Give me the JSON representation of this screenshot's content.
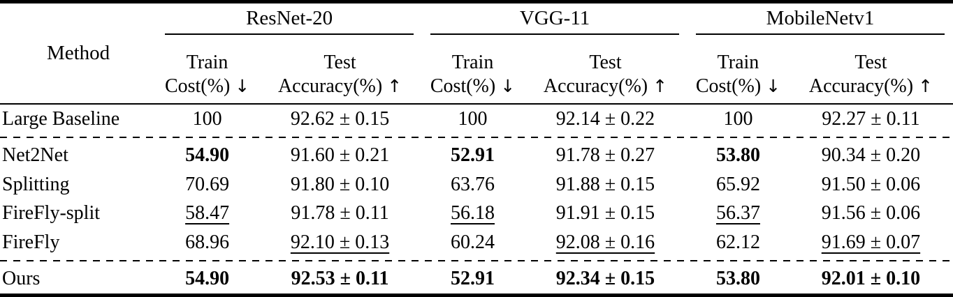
{
  "colors": {
    "text": "#000000",
    "background": "#ffffff",
    "rule": "#000000"
  },
  "table": {
    "method_header": "Method",
    "groups": [
      {
        "name": "ResNet-20"
      },
      {
        "name": "VGG-11"
      },
      {
        "name": "MobileNetv1"
      }
    ],
    "subcols": [
      {
        "line1": "Train",
        "line2": "Cost(%)",
        "arrow": "↓"
      },
      {
        "line1": "Test",
        "line2": "Accuracy(%)",
        "arrow": "↑"
      }
    ],
    "sections": [
      {
        "rows": [
          {
            "method": "Large Baseline",
            "cells": [
              {
                "text": "100",
                "emphasis": "none"
              },
              {
                "text": "92.62 ± 0.15",
                "emphasis": "none"
              },
              {
                "text": "100",
                "emphasis": "none"
              },
              {
                "text": "92.14 ± 0.22",
                "emphasis": "none"
              },
              {
                "text": "100",
                "emphasis": "none"
              },
              {
                "text": "92.27 ± 0.11",
                "emphasis": "none"
              }
            ]
          }
        ]
      },
      {
        "rows": [
          {
            "method": "Net2Net",
            "cells": [
              {
                "text": "54.90",
                "emphasis": "bold"
              },
              {
                "text": "91.60 ± 0.21",
                "emphasis": "none"
              },
              {
                "text": "52.91",
                "emphasis": "bold"
              },
              {
                "text": "91.78 ± 0.27",
                "emphasis": "none"
              },
              {
                "text": "53.80",
                "emphasis": "bold"
              },
              {
                "text": "90.34 ± 0.20",
                "emphasis": "none"
              }
            ]
          },
          {
            "method": "Splitting",
            "cells": [
              {
                "text": "70.69",
                "emphasis": "none"
              },
              {
                "text": "91.80 ± 0.10",
                "emphasis": "none"
              },
              {
                "text": "63.76",
                "emphasis": "none"
              },
              {
                "text": "91.88 ± 0.15",
                "emphasis": "none"
              },
              {
                "text": "65.92",
                "emphasis": "none"
              },
              {
                "text": "91.50 ± 0.06",
                "emphasis": "none"
              }
            ]
          },
          {
            "method": "FireFly-split",
            "cells": [
              {
                "text": "58.47",
                "emphasis": "underline"
              },
              {
                "text": "91.78 ± 0.11",
                "emphasis": "none"
              },
              {
                "text": "56.18",
                "emphasis": "underline"
              },
              {
                "text": "91.91 ± 0.15",
                "emphasis": "none"
              },
              {
                "text": "56.37",
                "emphasis": "underline"
              },
              {
                "text": "91.56 ± 0.06",
                "emphasis": "none"
              }
            ]
          },
          {
            "method": "FireFly",
            "cells": [
              {
                "text": "68.96",
                "emphasis": "none"
              },
              {
                "text": "92.10 ± 0.13",
                "emphasis": "underline"
              },
              {
                "text": "60.24",
                "emphasis": "none"
              },
              {
                "text": "92.08 ± 0.16",
                "emphasis": "underline"
              },
              {
                "text": "62.12",
                "emphasis": "none"
              },
              {
                "text": "91.69 ± 0.07",
                "emphasis": "underline"
              }
            ]
          }
        ]
      },
      {
        "rows": [
          {
            "method": "Ours",
            "cells": [
              {
                "text": "54.90",
                "emphasis": "bold"
              },
              {
                "text": "92.53 ± 0.11",
                "emphasis": "bold"
              },
              {
                "text": "52.91",
                "emphasis": "bold"
              },
              {
                "text": "92.34 ± 0.15",
                "emphasis": "bold"
              },
              {
                "text": "53.80",
                "emphasis": "bold"
              },
              {
                "text": "92.01 ± 0.10",
                "emphasis": "bold"
              }
            ]
          }
        ]
      }
    ]
  }
}
